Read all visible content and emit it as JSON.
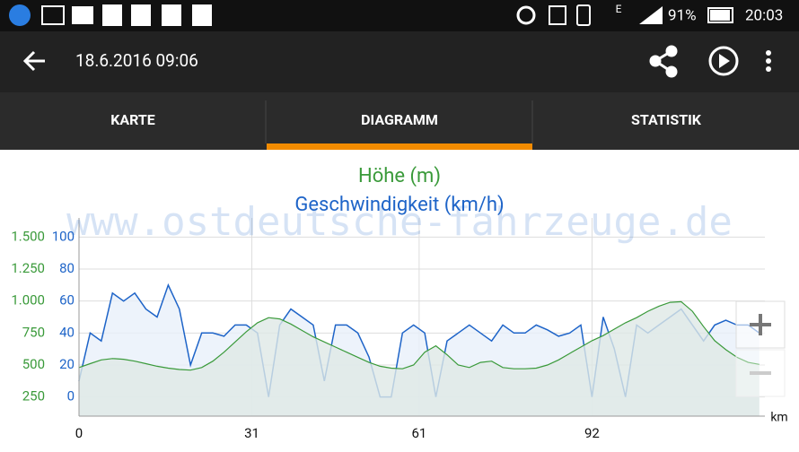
{
  "status_bar": {
    "network": "E",
    "battery": "91%",
    "time": "20:03"
  },
  "toolbar": {
    "title": "18.6.2016 09:06"
  },
  "tabs": [
    "KARTE",
    "DIAGRAMM",
    "STATISTIK"
  ],
  "watermark": "www.ostdeutsche-fahrzeuge.de",
  "chart_data": {
    "type": "area",
    "title": "Höhe (m)",
    "subtitle": "Geschwindigkeit (km/h)",
    "x_unit": "km",
    "x": [
      0,
      2,
      4,
      6,
      8,
      10,
      12,
      14,
      16,
      18,
      20,
      22,
      24,
      26,
      28,
      30,
      32,
      34,
      36,
      38,
      40,
      42,
      44,
      46,
      48,
      50,
      52,
      54,
      56,
      58,
      60,
      62,
      64,
      66,
      68,
      70,
      72,
      74,
      76,
      78,
      80,
      82,
      84,
      86,
      88,
      90,
      92,
      94,
      96,
      98,
      100,
      102,
      104,
      106,
      108,
      110,
      112,
      114,
      116,
      118,
      120,
      122
    ],
    "xlim": [
      0,
      123
    ],
    "xticks": [
      0,
      31,
      61,
      92
    ],
    "ylim": [
      100,
      1650
    ],
    "yticks": [
      {
        "value": 1500,
        "label": "1.500"
      },
      {
        "value": 1250,
        "label": "1.250"
      },
      {
        "value": 1000,
        "label": "1.000"
      },
      750,
      500,
      250
    ],
    "y2lim": [
      -12,
      112
    ],
    "y2ticks": [
      100,
      80,
      60,
      40,
      20,
      0
    ],
    "grid": true,
    "series": [
      {
        "name": "Höhe (m)",
        "color": "#3a9a3a",
        "fill": "#dfe8e6",
        "values": [
          480,
          510,
          540,
          550,
          545,
          530,
          510,
          490,
          475,
          465,
          460,
          480,
          530,
          600,
          680,
          760,
          830,
          870,
          860,
          820,
          770,
          720,
          680,
          640,
          600,
          560,
          520,
          490,
          475,
          470,
          500,
          600,
          650,
          580,
          500,
          480,
          520,
          530,
          480,
          470,
          470,
          475,
          500,
          540,
          590,
          640,
          690,
          730,
          780,
          830,
          870,
          920,
          960,
          990,
          995,
          920,
          800,
          690,
          620,
          560,
          520,
          505
        ]
      },
      {
        "name": "Geschwindigkeit (km/h)",
        "color": "#1e64c8",
        "fill": "#e8f0fa",
        "axis": "y2",
        "values": [
          10,
          40,
          35,
          65,
          60,
          65,
          55,
          50,
          70,
          55,
          20,
          40,
          40,
          38,
          45,
          45,
          40,
          0,
          45,
          55,
          50,
          45,
          10,
          45,
          45,
          40,
          25,
          0,
          0,
          40,
          45,
          40,
          0,
          35,
          40,
          45,
          40,
          35,
          45,
          40,
          40,
          45,
          42,
          38,
          40,
          45,
          0,
          50,
          30,
          0,
          45,
          40,
          45,
          50,
          55,
          45,
          35,
          45,
          48,
          45,
          45,
          40
        ]
      }
    ]
  }
}
